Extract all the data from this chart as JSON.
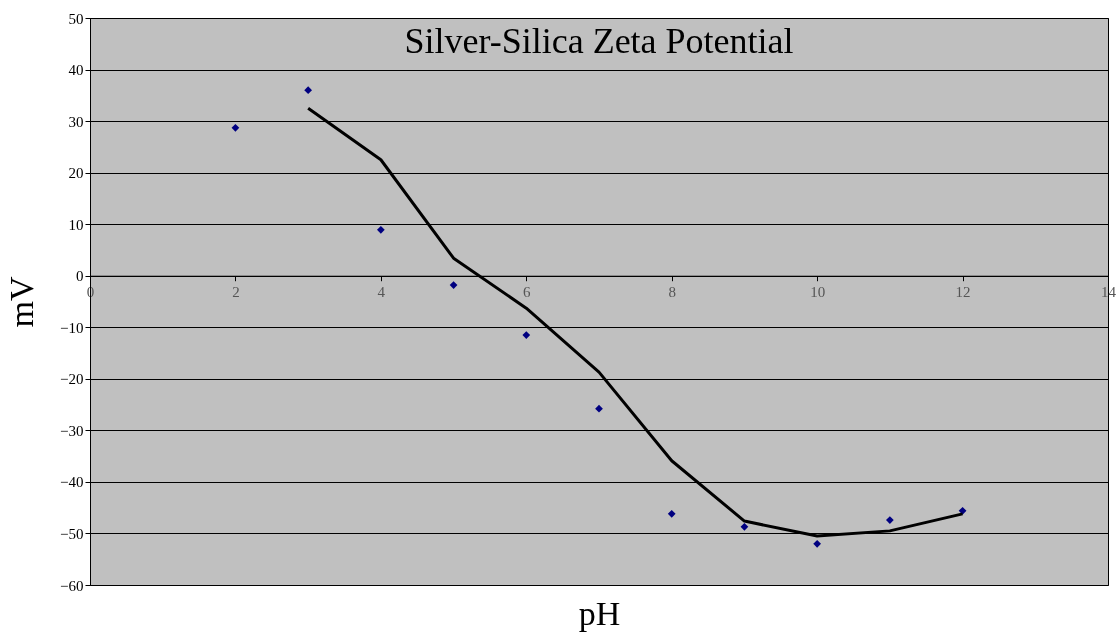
{
  "chart_data": {
    "type": "scatter",
    "title": "Silver-Silica Zeta Potential",
    "xlabel": "pH",
    "ylabel": "mV",
    "xlim": [
      0,
      14
    ],
    "xticks": [
      0,
      2,
      4,
      6,
      8,
      10,
      12,
      14
    ],
    "ylim": [
      -60,
      50
    ],
    "yticks": [
      -60,
      -50,
      -40,
      -30,
      -20,
      -10,
      0,
      10,
      20,
      30,
      40,
      50
    ],
    "grid": "y",
    "marker": "diamond",
    "series": [
      {
        "color": "#000080",
        "x": [
          2,
          3,
          4,
          5,
          6,
          7,
          8,
          9,
          10,
          11,
          12
        ],
        "values": [
          28.7,
          36.0,
          8.9,
          -1.8,
          -11.5,
          -25.8,
          -46.2,
          -48.7,
          -52.0,
          -47.4,
          -45.6
        ]
      },
      {
        "type": "line",
        "color": "#000000",
        "line_style": "solid",
        "marker": "none",
        "x": [
          3,
          4,
          5,
          6,
          7,
          8,
          9,
          10,
          11,
          12
        ],
        "values": [
          32.5,
          22.5,
          3.4,
          -6.3,
          -18.7,
          -35.9,
          -47.6,
          -50.5,
          -49.5,
          -46.2
        ]
      }
    ]
  }
}
